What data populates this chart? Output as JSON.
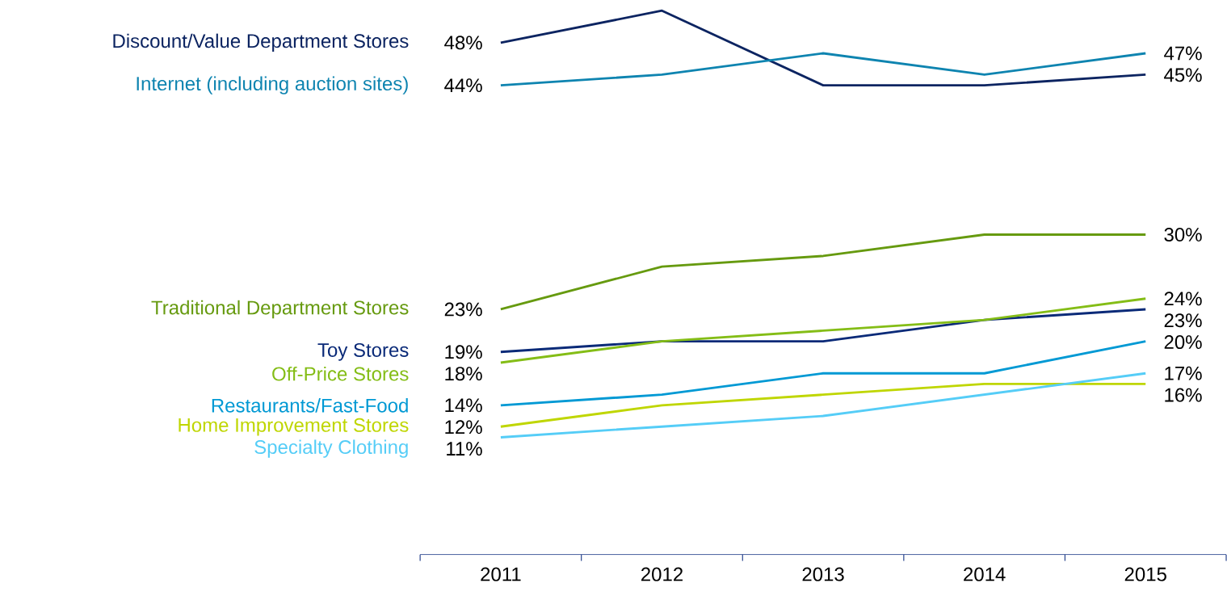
{
  "chart_data": {
    "type": "line",
    "categories": [
      "2011",
      "2012",
      "2013",
      "2014",
      "2015"
    ],
    "series": [
      {
        "name": "Discount/Value Department Stores",
        "color": "#0c2461",
        "values": [
          48,
          51,
          44,
          44,
          45
        ],
        "value_labels": [
          "48%",
          null,
          null,
          null,
          "45%"
        ]
      },
      {
        "name": "Internet (including auction sites)",
        "color": "#0e84b0",
        "values": [
          44,
          45,
          47,
          45,
          47
        ],
        "value_labels": [
          "44%",
          null,
          null,
          null,
          "47%"
        ]
      },
      {
        "name": "Traditional Department Stores",
        "color": "#669a0f",
        "values": [
          23,
          27,
          28,
          30,
          30
        ],
        "value_labels": [
          "23%",
          null,
          null,
          null,
          "30%"
        ]
      },
      {
        "name": "Toy Stores",
        "color": "#0a2a78",
        "values": [
          19,
          20,
          20,
          22,
          23
        ],
        "value_labels": [
          "19%",
          null,
          null,
          null,
          "23%"
        ]
      },
      {
        "name": "Off-Price Stores",
        "color": "#84bd16",
        "values": [
          18,
          20,
          21,
          22,
          24
        ],
        "value_labels": [
          "18%",
          null,
          null,
          null,
          "24%"
        ]
      },
      {
        "name": "Restaurants/Fast-Food",
        "color": "#0099d4",
        "values": [
          14,
          15,
          17,
          17,
          20
        ],
        "value_labels": [
          "14%",
          null,
          null,
          null,
          "20%"
        ]
      },
      {
        "name": "Home Improvement Stores",
        "color": "#bfd600",
        "values": [
          12,
          14,
          15,
          16,
          16
        ],
        "value_labels": [
          "12%",
          null,
          null,
          null,
          "16%"
        ]
      },
      {
        "name": "Specialty Clothing",
        "color": "#55cdf7",
        "values": [
          11,
          12,
          13,
          15,
          17
        ],
        "value_labels": [
          "11%",
          null,
          null,
          null,
          "17%"
        ]
      }
    ],
    "grid": false,
    "marker": "none",
    "line_style": "solid"
  }
}
